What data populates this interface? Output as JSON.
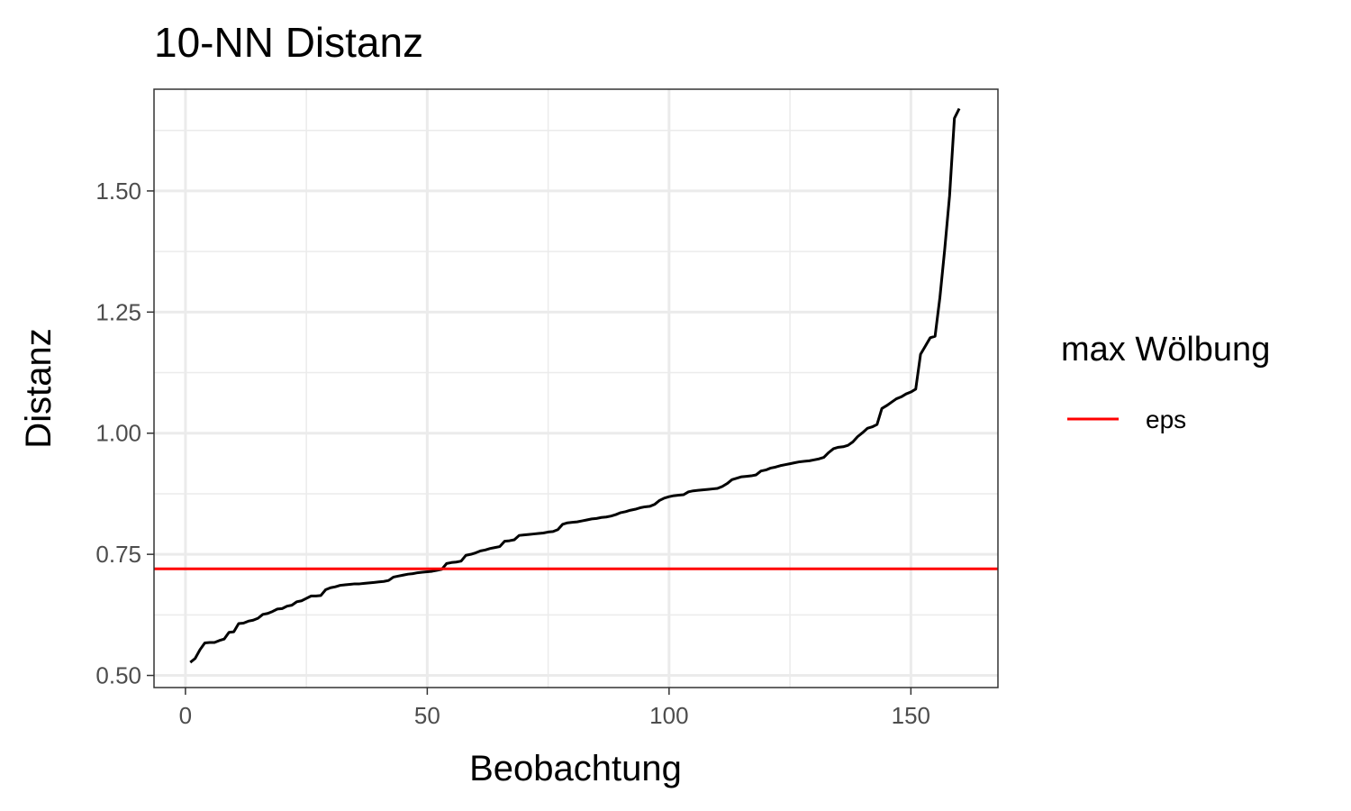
{
  "chart_data": {
    "type": "line",
    "title": "10-NN Distanz",
    "xlabel": "Beobachtung",
    "ylabel": "Distanz",
    "xlim": [
      -6.5,
      168
    ],
    "ylim": [
      0.475,
      1.71
    ],
    "x_ticks": [
      0,
      50,
      100,
      150
    ],
    "y_ticks": [
      0.5,
      0.75,
      1.0,
      1.25,
      1.5
    ],
    "x_tick_labels": [
      "0",
      "50",
      "100",
      "150"
    ],
    "y_tick_labels": [
      "0.50",
      "0.75",
      "1.00",
      "1.25",
      "1.50"
    ],
    "grid": true,
    "series": [
      {
        "color": "#000000",
        "x": [
          1,
          2,
          3,
          4,
          5,
          6,
          7,
          8,
          9,
          10,
          11,
          12,
          13,
          14,
          15,
          16,
          17,
          18,
          19,
          20,
          21,
          22,
          23,
          24,
          25,
          26,
          27,
          28,
          29,
          30,
          31,
          32,
          33,
          34,
          35,
          36,
          37,
          38,
          39,
          40,
          41,
          42,
          43,
          44,
          45,
          46,
          47,
          48,
          49,
          50,
          51,
          52,
          53,
          54,
          55,
          56,
          57,
          58,
          59,
          60,
          61,
          62,
          63,
          64,
          65,
          66,
          67,
          68,
          69,
          70,
          71,
          72,
          73,
          74,
          75,
          76,
          77,
          78,
          79,
          80,
          81,
          82,
          83,
          84,
          85,
          86,
          87,
          88,
          89,
          90,
          91,
          92,
          93,
          94,
          95,
          96,
          97,
          98,
          99,
          100,
          101,
          102,
          103,
          104,
          105,
          106,
          107,
          108,
          109,
          110,
          111,
          112,
          113,
          114,
          115,
          116,
          117,
          118,
          119,
          120,
          121,
          122,
          123,
          124,
          125,
          126,
          127,
          128,
          129,
          130,
          131,
          132,
          133,
          134,
          135,
          136,
          137,
          138,
          139,
          140,
          141,
          142,
          143,
          144,
          145,
          146,
          147,
          148,
          149,
          150,
          151,
          152,
          153,
          154,
          155,
          156,
          157,
          158,
          159,
          160
        ],
        "y": [
          0.527,
          0.535,
          0.553,
          0.567,
          0.568,
          0.568,
          0.572,
          0.575,
          0.589,
          0.59,
          0.607,
          0.608,
          0.612,
          0.614,
          0.618,
          0.626,
          0.628,
          0.632,
          0.637,
          0.638,
          0.643,
          0.645,
          0.652,
          0.654,
          0.659,
          0.664,
          0.664,
          0.665,
          0.677,
          0.681,
          0.683,
          0.686,
          0.687,
          0.688,
          0.689,
          0.689,
          0.69,
          0.691,
          0.692,
          0.693,
          0.694,
          0.696,
          0.703,
          0.705,
          0.707,
          0.709,
          0.71,
          0.712,
          0.713,
          0.714,
          0.715,
          0.717,
          0.719,
          0.731,
          0.733,
          0.734,
          0.736,
          0.748,
          0.75,
          0.753,
          0.757,
          0.759,
          0.762,
          0.764,
          0.766,
          0.777,
          0.778,
          0.78,
          0.789,
          0.79,
          0.791,
          0.792,
          0.793,
          0.794,
          0.796,
          0.797,
          0.801,
          0.812,
          0.815,
          0.816,
          0.817,
          0.819,
          0.821,
          0.823,
          0.824,
          0.826,
          0.827,
          0.829,
          0.832,
          0.836,
          0.838,
          0.841,
          0.843,
          0.846,
          0.848,
          0.849,
          0.853,
          0.861,
          0.866,
          0.869,
          0.871,
          0.872,
          0.873,
          0.879,
          0.881,
          0.882,
          0.883,
          0.884,
          0.885,
          0.886,
          0.89,
          0.896,
          0.904,
          0.907,
          0.91,
          0.911,
          0.912,
          0.914,
          0.922,
          0.924,
          0.928,
          0.93,
          0.933,
          0.935,
          0.937,
          0.939,
          0.941,
          0.942,
          0.943,
          0.945,
          0.947,
          0.95,
          0.96,
          0.968,
          0.971,
          0.972,
          0.975,
          0.982,
          0.993,
          1.001,
          1.01,
          1.013,
          1.018,
          1.051,
          1.057,
          1.064,
          1.071,
          1.075,
          1.081,
          1.085,
          1.091,
          1.163,
          1.18,
          1.197,
          1.2,
          1.28,
          1.38,
          1.49,
          1.65,
          1.67
        ]
      },
      {
        "name": "eps",
        "color": "#ff0000",
        "type": "hline",
        "y": 0.72
      }
    ],
    "legend": {
      "title": "max Wölbung",
      "placement": "right",
      "entries": [
        "eps"
      ]
    }
  }
}
